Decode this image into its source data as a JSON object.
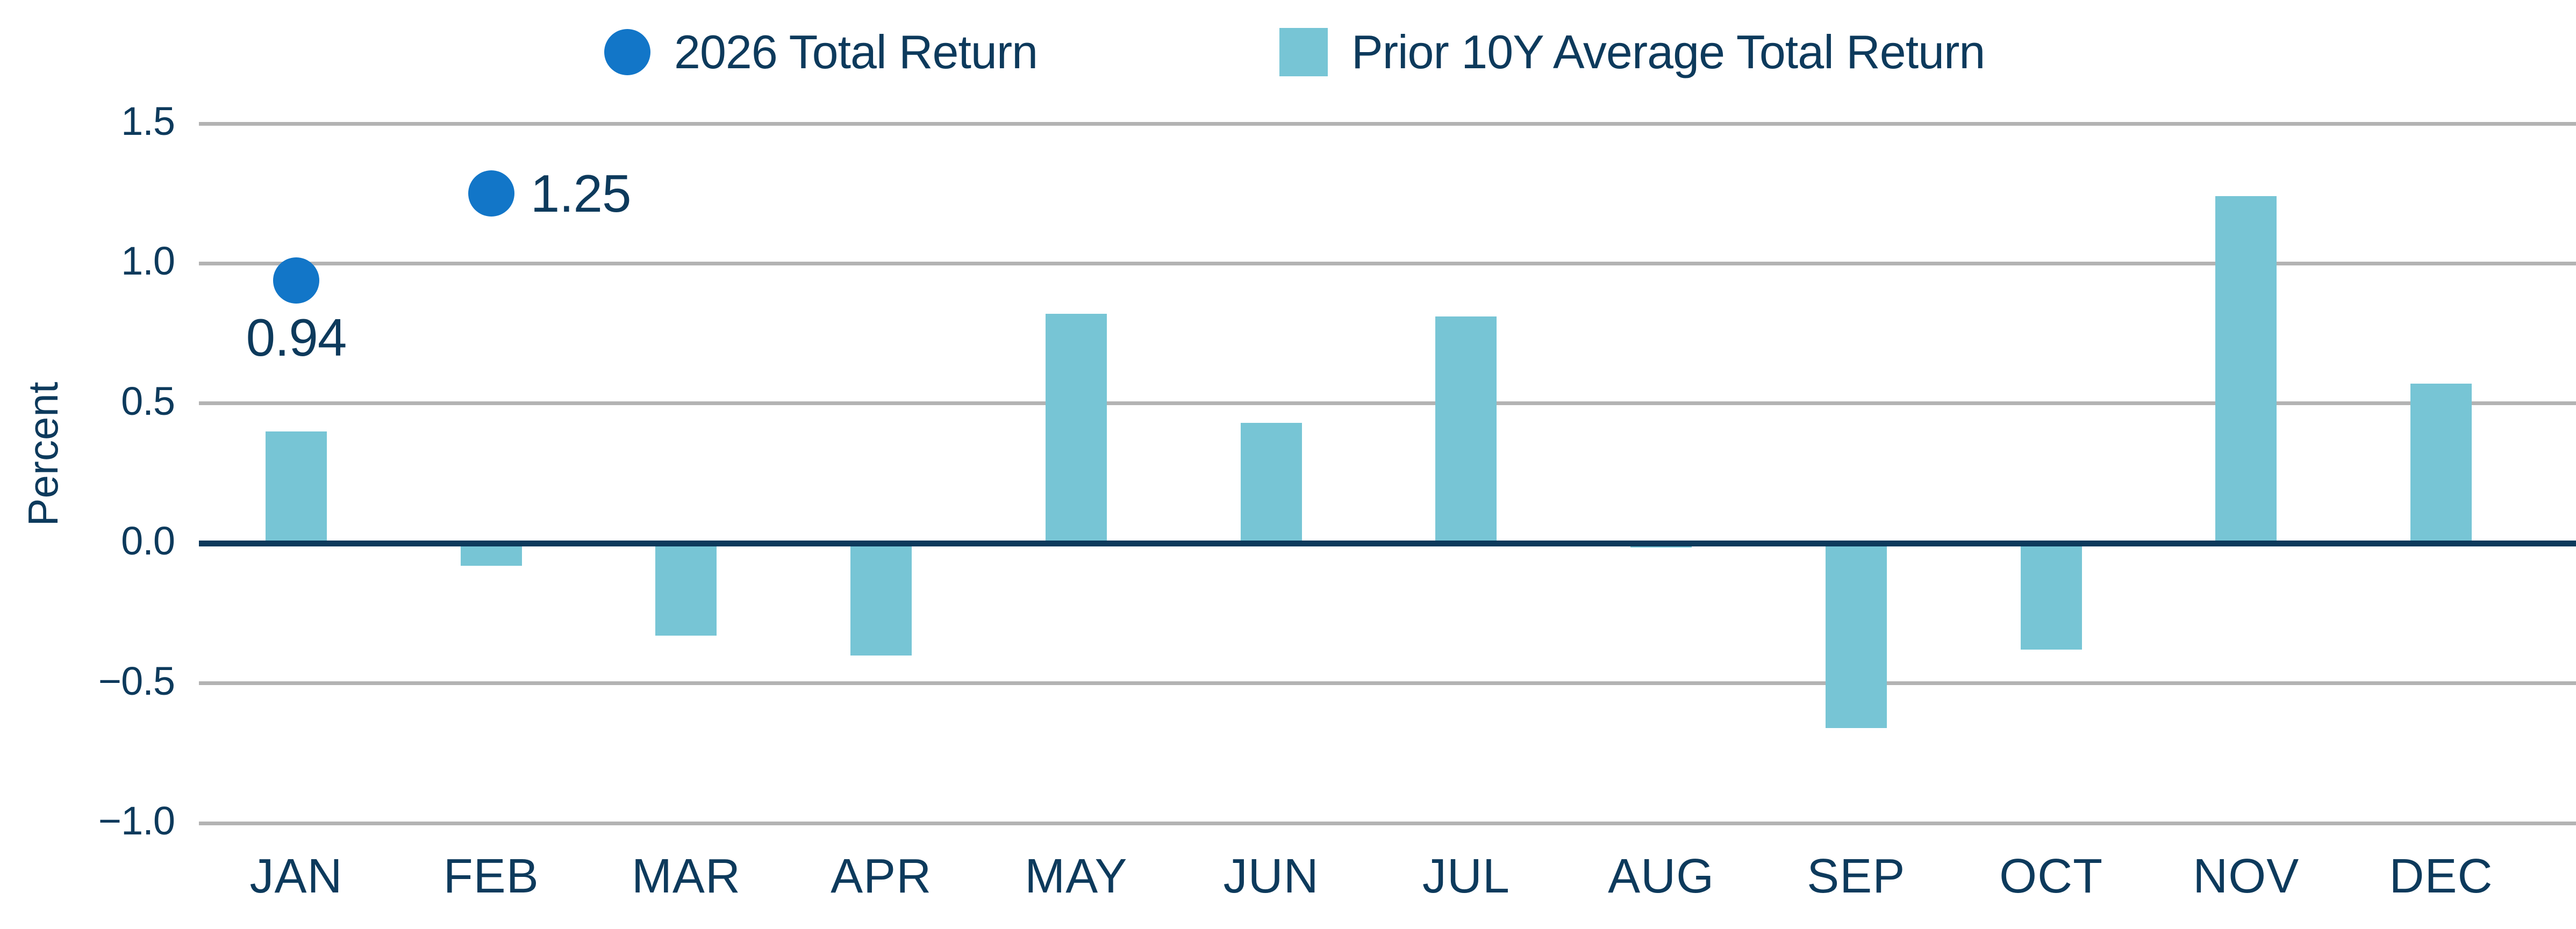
{
  "chart_data": {
    "type": "bar",
    "categories": [
      "JAN",
      "FEB",
      "MAR",
      "APR",
      "MAY",
      "JUN",
      "JUL",
      "AUG",
      "SEP",
      "OCT",
      "NOV",
      "DEC"
    ],
    "series": [
      {
        "name": "2026 Total Return",
        "type": "scatter",
        "color": "#1276c8",
        "points": [
          {
            "category": "JAN",
            "value": 0.94,
            "label": "0.94",
            "label_position": "below"
          },
          {
            "category": "FEB",
            "value": 1.25,
            "label": "1.25",
            "label_position": "right"
          }
        ]
      },
      {
        "name": "Prior 10Y Average Total Return",
        "type": "bar",
        "color": "#77c5d5",
        "values": [
          0.4,
          -0.08,
          -0.33,
          -0.4,
          0.82,
          0.43,
          0.81,
          -0.015,
          -0.66,
          -0.38,
          1.24,
          0.57
        ]
      }
    ],
    "title": "",
    "xlabel": "",
    "ylabel": "Percent",
    "ylim": [
      -1.0,
      1.5
    ],
    "yticks": [
      1.5,
      1.0,
      0.5,
      0.0,
      -0.5,
      -1.0
    ],
    "ytick_labels": [
      "1.5",
      "1.0",
      "0.5",
      "0.0",
      "−0.5",
      "−1.0"
    ],
    "grid": "horizontal",
    "legend_position": "top",
    "colors": {
      "axis_line": "#0d3a5c",
      "gridline": "#b3b3b3",
      "text": "#0d3a5c",
      "scatter_point": "#1276c8",
      "bar_fill": "#77c5d5"
    }
  }
}
